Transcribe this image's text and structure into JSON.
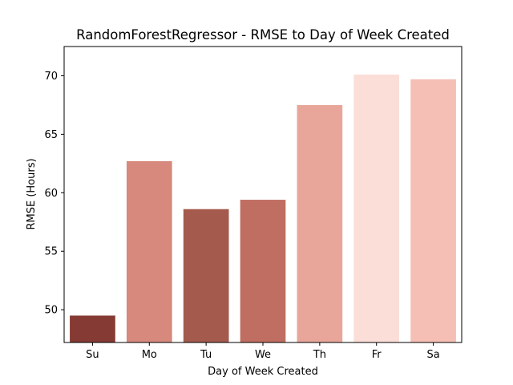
{
  "chart_data": {
    "type": "bar",
    "title": "RandomForestRegressor - RMSE to Day of Week Created",
    "xlabel": "Day of Week Created",
    "ylabel": "RMSE (Hours)",
    "categories": [
      "Su",
      "Mo",
      "Tu",
      "We",
      "Th",
      "Fr",
      "Sa"
    ],
    "values": [
      49.5,
      62.7,
      58.6,
      59.4,
      67.5,
      70.1,
      69.7
    ],
    "colors": [
      "#853a33",
      "#d6897c",
      "#a45a4d",
      "#c06e61",
      "#e8a69a",
      "#fbded8",
      "#f5bfb5"
    ],
    "ylim": [
      47.2,
      72.5
    ],
    "yticks": [
      50,
      55,
      60,
      65,
      70
    ],
    "grid": false,
    "legend": "none"
  }
}
